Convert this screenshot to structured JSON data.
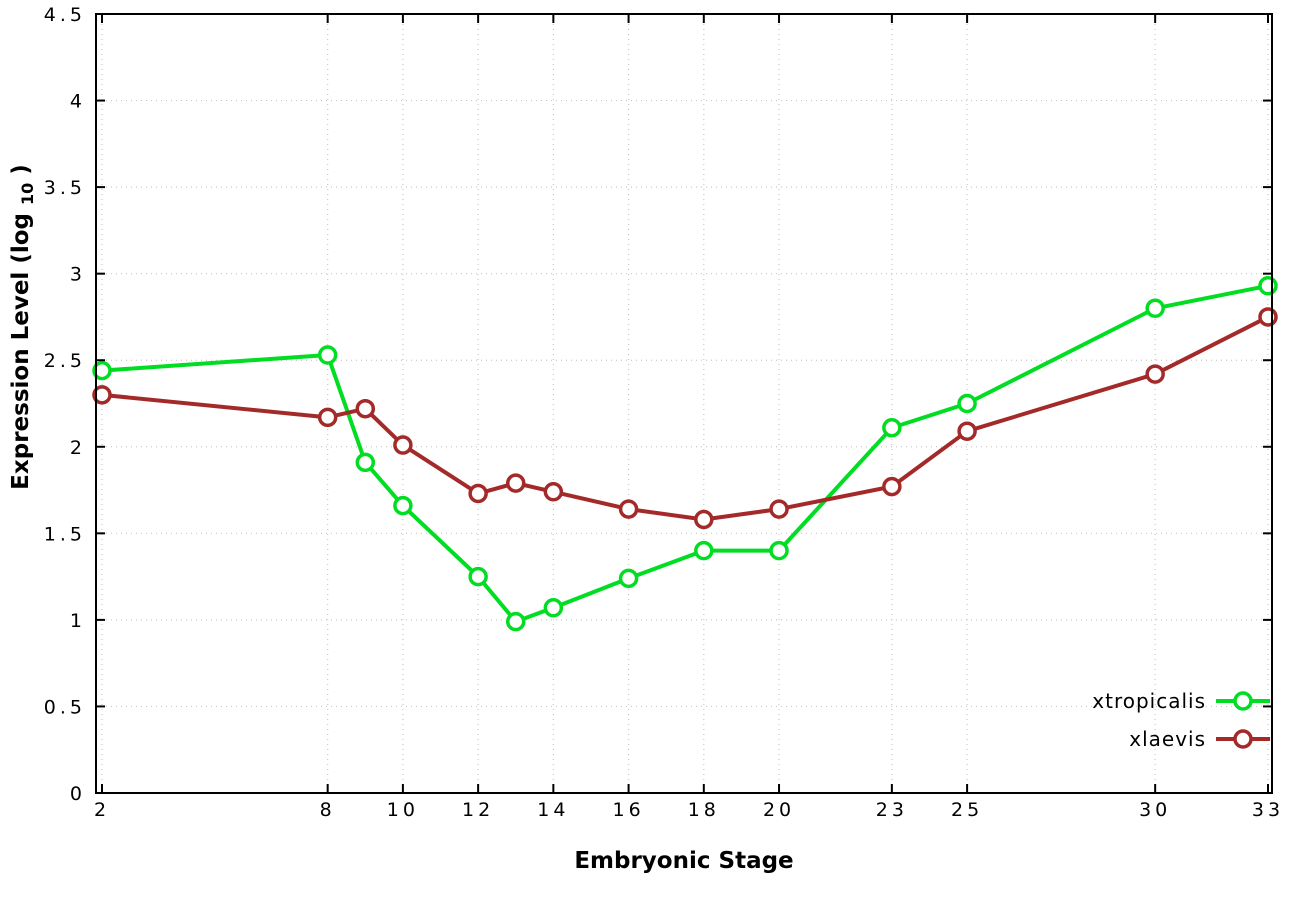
{
  "chart_data": {
    "type": "line",
    "title": "",
    "xlabel": "Embryonic Stage",
    "ylabel": "Expression Level (log10)",
    "ylabel_rich": {
      "prefix": "Expression Level (log",
      "subscript": "10",
      "suffix": ")"
    },
    "xlim": [
      2,
      33
    ],
    "ylim": [
      0,
      4.5
    ],
    "x_ticks": [
      2,
      8,
      10,
      12,
      14,
      16,
      18,
      20,
      23,
      25,
      30,
      33
    ],
    "y_tick_step": 0.5,
    "grid": true,
    "legend_position": "inside-bottom-right",
    "x": [
      2,
      8,
      9,
      10,
      12,
      13,
      14,
      16,
      18,
      20,
      23,
      25,
      30,
      33
    ],
    "series": [
      {
        "name": "xtropicalis",
        "color": "#00dd22",
        "marker": "open-circle",
        "values": [
          2.44,
          2.53,
          1.91,
          1.66,
          1.25,
          0.99,
          1.07,
          1.24,
          1.4,
          1.4,
          2.11,
          2.25,
          2.8,
          2.93
        ]
      },
      {
        "name": "xlaevis",
        "color": "#a42a2a",
        "marker": "open-circle",
        "values": [
          2.3,
          2.17,
          2.22,
          2.01,
          1.73,
          1.79,
          1.74,
          1.64,
          1.58,
          1.64,
          1.77,
          2.09,
          2.42,
          2.75
        ]
      }
    ]
  },
  "axes": {
    "y_tick_labels": [
      "0",
      "0.5",
      "1",
      "1.5",
      "2",
      "2.5",
      "3",
      "3.5",
      "4",
      "4.5"
    ],
    "x_tick_labels": [
      "2",
      "8",
      "10",
      "12",
      "14",
      "16",
      "18",
      "20",
      "23",
      "25",
      "30",
      "33"
    ]
  },
  "colors": {
    "grid": "#c8c8c8",
    "axis": "#000000",
    "background": "#ffffff"
  }
}
